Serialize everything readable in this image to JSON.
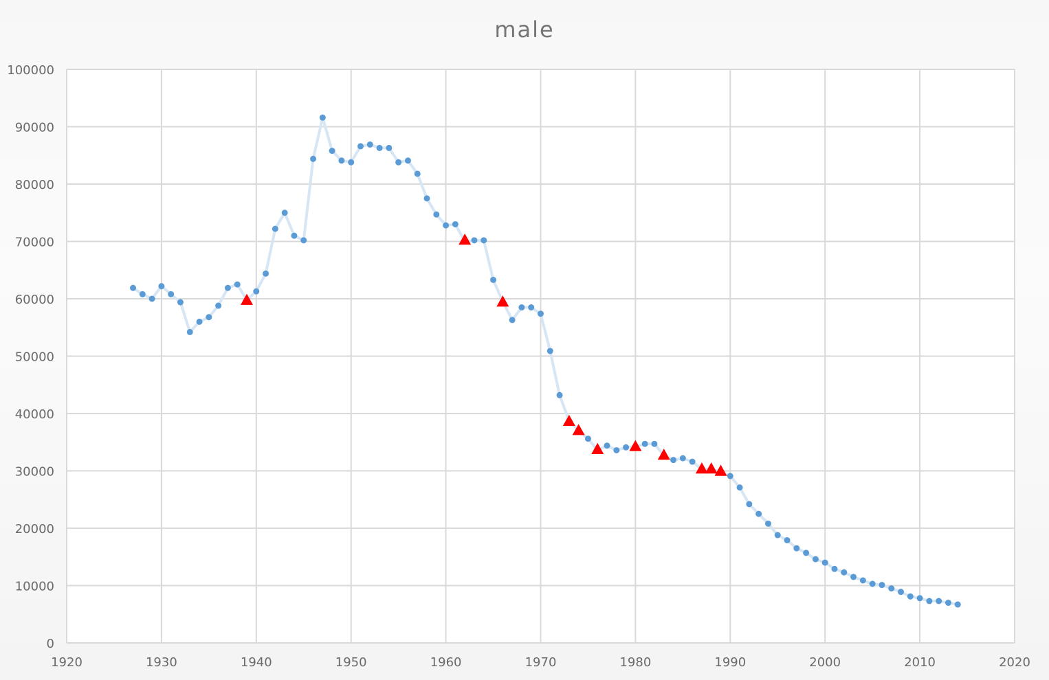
{
  "chart_data": {
    "type": "scatter",
    "title": "male",
    "xlabel": "",
    "ylabel": "",
    "xlim": [
      1920,
      2020
    ],
    "ylim": [
      0,
      100000
    ],
    "x_ticks": [
      "1920",
      "1930",
      "1940",
      "1950",
      "1960",
      "1970",
      "1980",
      "1990",
      "2000",
      "2010",
      "2020"
    ],
    "y_ticks": [
      "0",
      "10000",
      "20000",
      "30000",
      "40000",
      "50000",
      "60000",
      "70000",
      "80000",
      "90000",
      "100000"
    ],
    "grid": true,
    "legend": "none",
    "series": [
      {
        "marker": "circle",
        "color": "#5b9bd5",
        "line_color": "#d6e6f5",
        "points": [
          [
            1927,
            61900
          ],
          [
            1928,
            60800
          ],
          [
            1929,
            60000
          ],
          [
            1930,
            62200
          ],
          [
            1931,
            60800
          ],
          [
            1932,
            59400
          ],
          [
            1933,
            54200
          ],
          [
            1934,
            56000
          ],
          [
            1935,
            56800
          ],
          [
            1936,
            58800
          ],
          [
            1937,
            61900
          ],
          [
            1938,
            62500
          ],
          [
            1939,
            59800
          ],
          [
            1940,
            61300
          ],
          [
            1941,
            64400
          ],
          [
            1942,
            72200
          ],
          [
            1943,
            75000
          ],
          [
            1944,
            71000
          ],
          [
            1945,
            70200
          ],
          [
            1946,
            84400
          ],
          [
            1947,
            91600
          ],
          [
            1948,
            85800
          ],
          [
            1949,
            84100
          ],
          [
            1950,
            83800
          ],
          [
            1951,
            86600
          ],
          [
            1952,
            86900
          ],
          [
            1953,
            86300
          ],
          [
            1954,
            86300
          ],
          [
            1955,
            83800
          ],
          [
            1956,
            84100
          ],
          [
            1957,
            81800
          ],
          [
            1958,
            77500
          ],
          [
            1959,
            74700
          ],
          [
            1960,
            72800
          ],
          [
            1961,
            73000
          ],
          [
            1962,
            70000
          ],
          [
            1963,
            70200
          ],
          [
            1964,
            70200
          ],
          [
            1965,
            63300
          ],
          [
            1966,
            59500
          ],
          [
            1967,
            56300
          ],
          [
            1968,
            58500
          ],
          [
            1969,
            58500
          ],
          [
            1970,
            57400
          ],
          [
            1971,
            50900
          ],
          [
            1972,
            43200
          ],
          [
            1973,
            38700
          ],
          [
            1974,
            37000
          ],
          [
            1975,
            35600
          ],
          [
            1976,
            33600
          ],
          [
            1977,
            34400
          ],
          [
            1978,
            33600
          ],
          [
            1979,
            34100
          ],
          [
            1980,
            34200
          ],
          [
            1981,
            34700
          ],
          [
            1982,
            34700
          ],
          [
            1983,
            32700
          ],
          [
            1984,
            31900
          ],
          [
            1985,
            32200
          ],
          [
            1986,
            31600
          ],
          [
            1987,
            30300
          ],
          [
            1988,
            30300
          ],
          [
            1989,
            29800
          ],
          [
            1990,
            29100
          ],
          [
            1991,
            27100
          ],
          [
            1992,
            24200
          ],
          [
            1993,
            22500
          ],
          [
            1994,
            20800
          ],
          [
            1995,
            18800
          ],
          [
            1996,
            17900
          ],
          [
            1997,
            16500
          ],
          [
            1998,
            15700
          ],
          [
            1999,
            14600
          ],
          [
            2000,
            14000
          ],
          [
            2001,
            12900
          ],
          [
            2002,
            12300
          ],
          [
            2003,
            11500
          ],
          [
            2004,
            10900
          ],
          [
            2005,
            10300
          ],
          [
            2006,
            10100
          ],
          [
            2007,
            9500
          ],
          [
            2008,
            8900
          ],
          [
            2009,
            8100
          ],
          [
            2010,
            7800
          ],
          [
            2011,
            7300
          ],
          [
            2012,
            7300
          ],
          [
            2013,
            7000
          ],
          [
            2014,
            6700
          ]
        ]
      },
      {
        "marker": "triangle",
        "color": "#ff0000",
        "points": [
          [
            1939,
            59800
          ],
          [
            1962,
            70300
          ],
          [
            1966,
            59500
          ],
          [
            1973,
            38700
          ],
          [
            1974,
            37100
          ],
          [
            1976,
            33800
          ],
          [
            1980,
            34300
          ],
          [
            1983,
            32800
          ],
          [
            1987,
            30400
          ],
          [
            1988,
            30400
          ],
          [
            1989,
            30000
          ]
        ]
      }
    ]
  }
}
